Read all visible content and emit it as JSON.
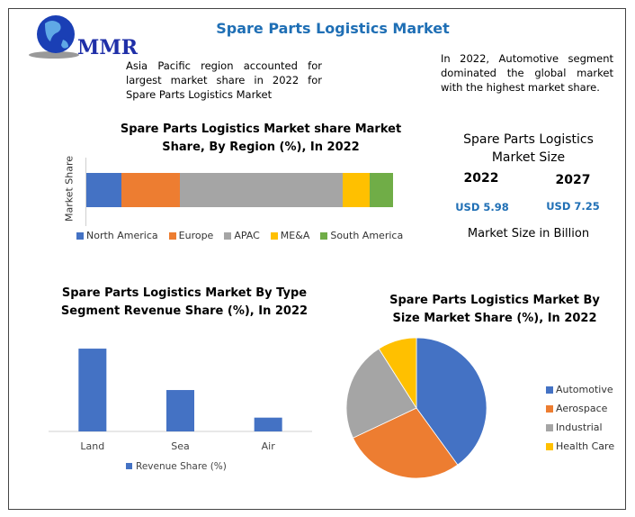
{
  "logo": {
    "text": "MMR"
  },
  "header": {
    "title": "Spare Parts Logistics Market"
  },
  "notes": {
    "left": "Asia Pacific region accounted for largest market share in 2022 for Spare Parts Logistics Market",
    "right": "In 2022, Automotive segment dominated the global market with the highest market share."
  },
  "market_size": {
    "title": "Spare Parts Logistics Market Size",
    "year1": "2022",
    "value1": "USD 5.98",
    "year2": "2027",
    "value2": "USD 7.25",
    "unit": "Market Size in Billion",
    "value_color": "#1f6fb5"
  },
  "chart_data": [
    {
      "type": "bar",
      "stacked": true,
      "orientation": "horizontal",
      "title": "Spare Parts Logistics Market share Market Share, By Region (%), In 2022",
      "ylabel": "Market Share",
      "legend": "bottom",
      "series": [
        {
          "name": "North America",
          "values": [
            11.5
          ],
          "color": "#4472c4"
        },
        {
          "name": "Europe",
          "values": [
            19
          ],
          "color": "#ed7d31"
        },
        {
          "name": "APAC",
          "values": [
            53
          ],
          "color": "#a5a5a5"
        },
        {
          "name": "ME&A",
          "values": [
            9
          ],
          "color": "#ffc000"
        },
        {
          "name": "South America",
          "values": [
            7.5
          ],
          "color": "#70ad47"
        }
      ]
    },
    {
      "type": "bar",
      "title": "Spare Parts Logistics Market By Type Segment Revenue Share (%), In 2022",
      "categories": [
        "Land",
        "Sea",
        "Air"
      ],
      "series": [
        {
          "name": "Revenue Share (%)",
          "values": [
            60,
            30,
            10
          ],
          "color": "#4472c4"
        }
      ],
      "ylim": [
        0,
        62
      ],
      "legend": "bottom",
      "grid": false
    },
    {
      "type": "pie",
      "title": "Spare Parts Logistics Market By Size Market Share (%), In 2022",
      "legend": "right",
      "slices": [
        {
          "name": "Automotive",
          "value": 40,
          "color": "#4472c4"
        },
        {
          "name": "Aerospace",
          "value": 28,
          "color": "#ed7d31"
        },
        {
          "name": "Industrial",
          "value": 23,
          "color": "#a5a5a5"
        },
        {
          "name": "Health Care",
          "value": 9,
          "color": "#ffc000"
        }
      ]
    }
  ]
}
